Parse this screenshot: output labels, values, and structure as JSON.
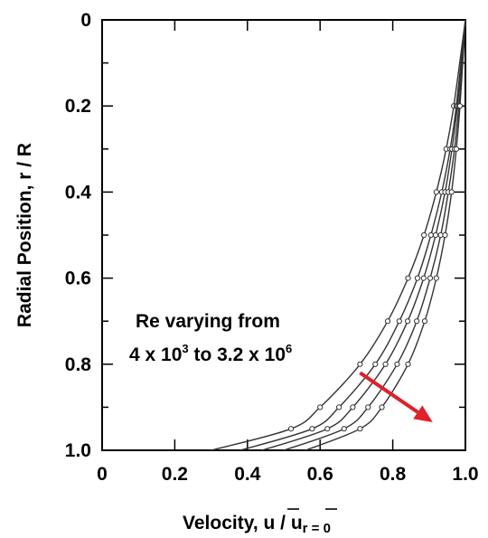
{
  "chart_data": {
    "type": "line",
    "title": "",
    "xlabel": {
      "prefix": "Velocity, ",
      "u1": "u",
      "slash": " / ",
      "u2": "u",
      "subscript": "r = 0"
    },
    "ylabel": "Radial Position, r / R",
    "xlim": [
      0,
      1.0
    ],
    "ylim": [
      0,
      1.0
    ],
    "y_inverted": true,
    "x_ticks": [
      "0",
      "0.2",
      "0.4",
      "0.6",
      "0.8",
      "1.0"
    ],
    "y_ticks": [
      "0",
      "0.2",
      "0.4",
      "0.6",
      "0.8",
      "1.0"
    ],
    "grid": false,
    "y_positions": [
      0.0,
      0.2,
      0.3,
      0.4,
      0.5,
      0.6,
      0.7,
      0.8,
      0.9,
      0.95,
      1.0
    ],
    "series": [
      {
        "values": [
          1.0,
          0.968,
          0.947,
          0.92,
          0.886,
          0.842,
          0.786,
          0.71,
          0.6,
          0.52,
          0.3
        ]
      },
      {
        "values": [
          1.0,
          0.975,
          0.958,
          0.935,
          0.905,
          0.868,
          0.818,
          0.752,
          0.652,
          0.578,
          0.38
        ]
      },
      {
        "values": [
          1.0,
          0.978,
          0.963,
          0.944,
          0.918,
          0.885,
          0.841,
          0.78,
          0.69,
          0.62,
          0.44
        ]
      },
      {
        "values": [
          1.0,
          0.982,
          0.97,
          0.953,
          0.932,
          0.903,
          0.866,
          0.812,
          0.732,
          0.666,
          0.5
        ]
      },
      {
        "values": [
          1.0,
          0.985,
          0.975,
          0.962,
          0.944,
          0.92,
          0.888,
          0.842,
          0.77,
          0.71,
          0.56
        ]
      }
    ],
    "line_color": "#333333",
    "annotation": {
      "line1": "Re  varying from",
      "line2_a": "4 x 10",
      "line2_exp_a": "3",
      "line2_b": " to 3.2 x 10",
      "line2_exp_b": "6",
      "arrow_color": "#e0202a",
      "arrow_from": {
        "x": 0.71,
        "y": 0.82
      },
      "arrow_to": {
        "x": 0.91,
        "y": 0.935
      }
    }
  }
}
